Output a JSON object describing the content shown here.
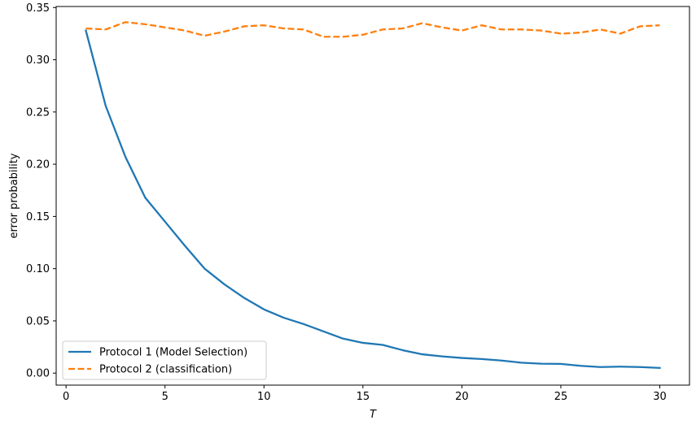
{
  "chart_data": {
    "type": "line",
    "title": "",
    "xlabel": "T",
    "ylabel": "error probability",
    "xlim": [
      -0.5,
      31.5
    ],
    "ylim": [
      -0.0115,
      0.351
    ],
    "x_ticks": [
      0,
      5,
      10,
      15,
      20,
      25,
      30
    ],
    "y_ticks": [
      0.0,
      0.05,
      0.1,
      0.15,
      0.2,
      0.25,
      0.3,
      0.35
    ],
    "x_tick_labels": [
      "0",
      "5",
      "10",
      "15",
      "20",
      "25",
      "30"
    ],
    "y_tick_labels": [
      "0.00",
      "0.05",
      "0.10",
      "0.15",
      "0.20",
      "0.25",
      "0.30",
      "0.35"
    ],
    "grid": false,
    "legend_position": "lower-left",
    "x": [
      1,
      2,
      3,
      4,
      5,
      6,
      7,
      8,
      9,
      10,
      11,
      12,
      13,
      14,
      15,
      16,
      17,
      18,
      19,
      20,
      21,
      22,
      23,
      24,
      25,
      26,
      27,
      28,
      29,
      30
    ],
    "series": [
      {
        "name": "Protocol 1 (Model Selection)",
        "color": "#1f77b4",
        "style": "solid",
        "values": [
          0.328,
          0.256,
          0.207,
          0.168,
          0.145,
          0.122,
          0.1,
          0.085,
          0.072,
          0.061,
          0.053,
          0.047,
          0.04,
          0.033,
          0.029,
          0.027,
          0.022,
          0.018,
          0.016,
          0.0145,
          0.0135,
          0.012,
          0.01,
          0.009,
          0.0088,
          0.007,
          0.0058,
          0.0062,
          0.0058,
          0.005
        ]
      },
      {
        "name": "Protocol 2 (classification)",
        "color": "#ff7f0e",
        "style": "dashed",
        "values": [
          0.33,
          0.329,
          0.336,
          0.334,
          0.331,
          0.328,
          0.323,
          0.327,
          0.332,
          0.333,
          0.33,
          0.329,
          0.322,
          0.322,
          0.324,
          0.329,
          0.33,
          0.335,
          0.331,
          0.328,
          0.333,
          0.329,
          0.329,
          0.328,
          0.325,
          0.326,
          0.329,
          0.325,
          0.332,
          0.333
        ]
      }
    ]
  }
}
